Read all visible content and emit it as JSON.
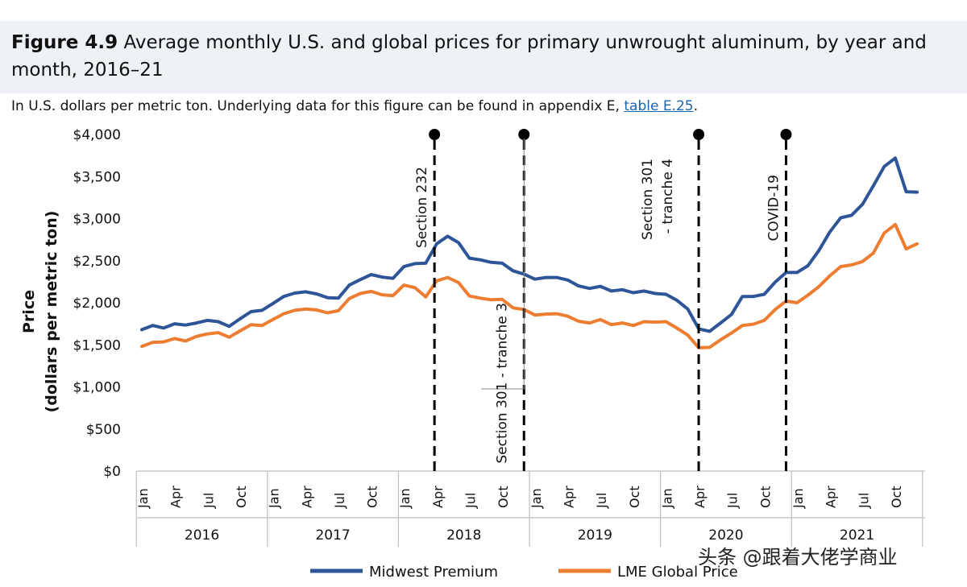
{
  "figure": {
    "label": "Figure 4.9",
    "title": "Average monthly U.S. and global prices for primary unwrought aluminum, by year and month, 2016–21",
    "subtitle_prefix": "In U.S. dollars per metric ton. Underlying data for this figure can be found in appendix E, ",
    "subtitle_link": "table E.25",
    "subtitle_suffix": "."
  },
  "watermark": "头条 @跟着大佬学商业",
  "colors": {
    "midwest": "#2e5597",
    "lme": "#ed7d31",
    "axis": "#bfbfbf"
  },
  "chart_data": {
    "type": "line",
    "ylabel_line1": "Price",
    "ylabel_line2": "(dollars per metric ton)",
    "ylim": [
      0,
      4000
    ],
    "yticks": [
      0,
      500,
      1000,
      1500,
      2000,
      2500,
      3000,
      3500,
      4000
    ],
    "ytick_labels": [
      "$0",
      "$500",
      "$1,000",
      "$1,500",
      "$2,000",
      "$2,500",
      "$3,000",
      "$3,500",
      "$4,000"
    ],
    "month_tick_labels": [
      "Jan",
      "Apr",
      "Jul",
      "Oct"
    ],
    "years": [
      "2016",
      "2017",
      "2018",
      "2019",
      "2020",
      "2021"
    ],
    "grid": false,
    "legend_position": "bottom",
    "series": [
      {
        "name": "Midwest Premium",
        "color_key": "midwest",
        "values": [
          1680,
          1730,
          1700,
          1750,
          1735,
          1760,
          1790,
          1775,
          1720,
          1810,
          1895,
          1910,
          1990,
          2075,
          2115,
          2130,
          2105,
          2060,
          2055,
          2210,
          2275,
          2335,
          2305,
          2290,
          2430,
          2465,
          2470,
          2700,
          2790,
          2715,
          2530,
          2510,
          2480,
          2470,
          2380,
          2340,
          2280,
          2300,
          2300,
          2270,
          2200,
          2170,
          2195,
          2140,
          2155,
          2120,
          2140,
          2110,
          2100,
          2030,
          1925,
          1690,
          1660,
          1760,
          1860,
          2075,
          2075,
          2100,
          2245,
          2360,
          2360,
          2440,
          2620,
          2840,
          3010,
          3040,
          3170,
          3390,
          3620,
          3720,
          3320,
          3315
        ]
      },
      {
        "name": "LME Global Price",
        "color_key": "lme",
        "values": [
          1480,
          1530,
          1535,
          1575,
          1545,
          1600,
          1630,
          1645,
          1590,
          1665,
          1740,
          1730,
          1800,
          1870,
          1910,
          1925,
          1915,
          1880,
          1905,
          2050,
          2110,
          2135,
          2095,
          2085,
          2210,
          2180,
          2070,
          2260,
          2300,
          2240,
          2080,
          2055,
          2035,
          2040,
          1940,
          1920,
          1855,
          1865,
          1870,
          1840,
          1780,
          1760,
          1800,
          1740,
          1760,
          1730,
          1775,
          1770,
          1775,
          1700,
          1615,
          1465,
          1470,
          1560,
          1640,
          1730,
          1745,
          1790,
          1920,
          2020,
          2000,
          2090,
          2190,
          2320,
          2430,
          2450,
          2490,
          2590,
          2830,
          2930,
          2640,
          2700
        ]
      }
    ],
    "annotations": [
      {
        "label": "Section 232",
        "month_index": 26.8
      },
      {
        "label": "Section 301 - tranche 3",
        "month_index": 35.0
      },
      {
        "label": "Section 301",
        "label_line2": "- tranche 4",
        "month_index": 51.0
      },
      {
        "label": "COVID-19",
        "month_index": 59.0
      }
    ]
  }
}
